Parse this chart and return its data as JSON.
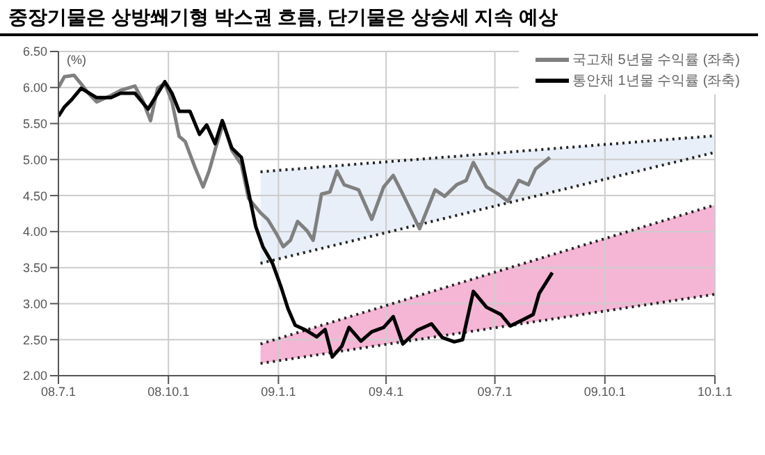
{
  "chart_data": {
    "type": "line",
    "title": "중장기물은 상방쐐기형 박스권 흐름, 단기물은 상승세 지속 예상",
    "ylabel": "(%)",
    "xlim": [
      "2008-07-01",
      "2010-01-01"
    ],
    "xticks": [
      {
        "value": "2008-07-01",
        "label": "08.7.1"
      },
      {
        "value": "2008-10-01",
        "label": "08.10.1"
      },
      {
        "value": "2009-01-01",
        "label": "09.1.1"
      },
      {
        "value": "2009-04-01",
        "label": "09.4.1"
      },
      {
        "value": "2009-07-01",
        "label": "09.7.1"
      },
      {
        "value": "2009-10-01",
        "label": "09.10.1"
      },
      {
        "value": "2010-01-01",
        "label": "10.1.1"
      }
    ],
    "ylim": [
      2,
      6.5
    ],
    "yticks": [
      {
        "value": 2,
        "label": "2.00"
      },
      {
        "value": 2.5,
        "label": "2.50"
      },
      {
        "value": 3,
        "label": "3.00"
      },
      {
        "value": 3.5,
        "label": "3.50"
      },
      {
        "value": 4,
        "label": "4.00"
      },
      {
        "value": 4.5,
        "label": "4.50"
      },
      {
        "value": 5,
        "label": "5.00"
      },
      {
        "value": 5.5,
        "label": "5.50"
      },
      {
        "value": 6,
        "label": "6.00"
      },
      {
        "value": 6.5,
        "label": "6.50"
      }
    ],
    "grid": true,
    "legend": "top right",
    "series": [
      {
        "color": "#222222",
        "line_style": "dotted",
        "x": [
          "2008-12-17",
          "2010-01-01"
        ],
        "values": [
          4.83,
          5.33
        ]
      },
      {
        "color": "#222222",
        "line_style": "dotted",
        "x": [
          "2008-12-17",
          "2010-01-01"
        ],
        "values": [
          3.56,
          5.1
        ]
      },
      {
        "color": "#222222",
        "line_style": "dotted",
        "x": [
          "2008-12-17",
          "2010-01-01"
        ],
        "values": [
          2.44,
          4.37
        ]
      },
      {
        "color": "#222222",
        "line_style": "dotted",
        "x": [
          "2008-12-17",
          "2010-01-01"
        ],
        "values": [
          2.17,
          3.13
        ]
      },
      {
        "name": "국고채 5년물 수익률 (좌축)",
        "color": "#808080",
        "x": [
          "2008-07-01",
          "2008-07-06",
          "2008-07-14",
          "2008-07-20",
          "2008-07-26",
          "2008-08-02",
          "2008-08-14",
          "2008-08-22",
          "2008-09-03",
          "2008-09-10",
          "2008-09-16",
          "2008-09-22",
          "2008-09-28",
          "2008-10-04",
          "2008-10-10",
          "2008-10-15",
          "2008-10-23",
          "2008-10-30",
          "2008-11-04",
          "2008-11-10",
          "2008-11-16",
          "2008-11-23",
          "2008-12-01",
          "2008-12-07",
          "2008-12-17",
          "2008-12-23",
          "2008-12-31",
          "2009-01-05",
          "2009-01-11",
          "2009-01-17",
          "2009-01-25",
          "2009-01-30",
          "2009-02-06",
          "2009-02-13",
          "2009-02-19",
          "2009-02-25",
          "2009-03-09",
          "2009-03-20",
          "2009-03-30",
          "2009-04-07",
          "2009-04-15",
          "2009-04-29",
          "2009-05-12",
          "2009-05-20",
          "2009-05-30",
          "2009-06-07",
          "2009-06-13",
          "2009-06-24",
          "2009-07-04",
          "2009-07-12",
          "2009-07-21",
          "2009-07-29",
          "2009-08-04",
          "2009-08-16"
        ],
        "values": [
          6.0,
          6.15,
          6.17,
          6.05,
          5.92,
          5.8,
          5.89,
          5.96,
          6.02,
          5.8,
          5.54,
          5.99,
          6.06,
          5.8,
          5.32,
          5.25,
          4.9,
          4.62,
          4.84,
          5.19,
          5.51,
          5.13,
          4.93,
          4.46,
          4.26,
          4.17,
          3.95,
          3.79,
          3.88,
          4.14,
          4.01,
          3.88,
          4.52,
          4.55,
          4.84,
          4.65,
          4.58,
          4.17,
          4.62,
          4.78,
          4.52,
          4.04,
          4.58,
          4.49,
          4.65,
          4.71,
          4.96,
          4.62,
          4.52,
          4.42,
          4.71,
          4.65,
          4.87,
          5.03
        ]
      },
      {
        "name": "통안채 1년물 수익률 (좌축)",
        "color": "#000000",
        "x": [
          "2008-07-01",
          "2008-07-06",
          "2008-07-12",
          "2008-07-20",
          "2008-08-02",
          "2008-08-14",
          "2008-08-22",
          "2008-09-03",
          "2008-09-14",
          "2008-09-28",
          "2008-10-04",
          "2008-10-10",
          "2008-10-19",
          "2008-10-27",
          "2008-11-02",
          "2008-11-09",
          "2008-11-15",
          "2008-11-23",
          "2008-12-01",
          "2008-12-07",
          "2008-12-13",
          "2008-12-19",
          "2008-12-27",
          "2009-01-03",
          "2009-01-09",
          "2009-01-15",
          "2009-01-23",
          "2009-02-02",
          "2009-02-09",
          "2009-02-15",
          "2009-02-23",
          "2009-03-01",
          "2009-03-11",
          "2009-03-20",
          "2009-03-30",
          "2009-04-07",
          "2009-04-15",
          "2009-04-27",
          "2009-05-09",
          "2009-05-18",
          "2009-05-28",
          "2009-06-04",
          "2009-06-13",
          "2009-06-24",
          "2009-07-06",
          "2009-07-14",
          "2009-07-26",
          "2009-08-02",
          "2009-08-07",
          "2009-08-18"
        ],
        "values": [
          5.6,
          5.73,
          5.83,
          5.99,
          5.86,
          5.86,
          5.92,
          5.92,
          5.7,
          6.08,
          5.92,
          5.67,
          5.67,
          5.35,
          5.48,
          5.22,
          5.54,
          5.16,
          5.03,
          4.55,
          4.07,
          3.79,
          3.56,
          3.24,
          2.93,
          2.7,
          2.64,
          2.54,
          2.64,
          2.26,
          2.41,
          2.67,
          2.48,
          2.61,
          2.67,
          2.82,
          2.44,
          2.63,
          2.72,
          2.53,
          2.47,
          2.5,
          3.17,
          2.95,
          2.85,
          2.69,
          2.79,
          2.85,
          3.14,
          3.43
        ]
      }
    ]
  }
}
